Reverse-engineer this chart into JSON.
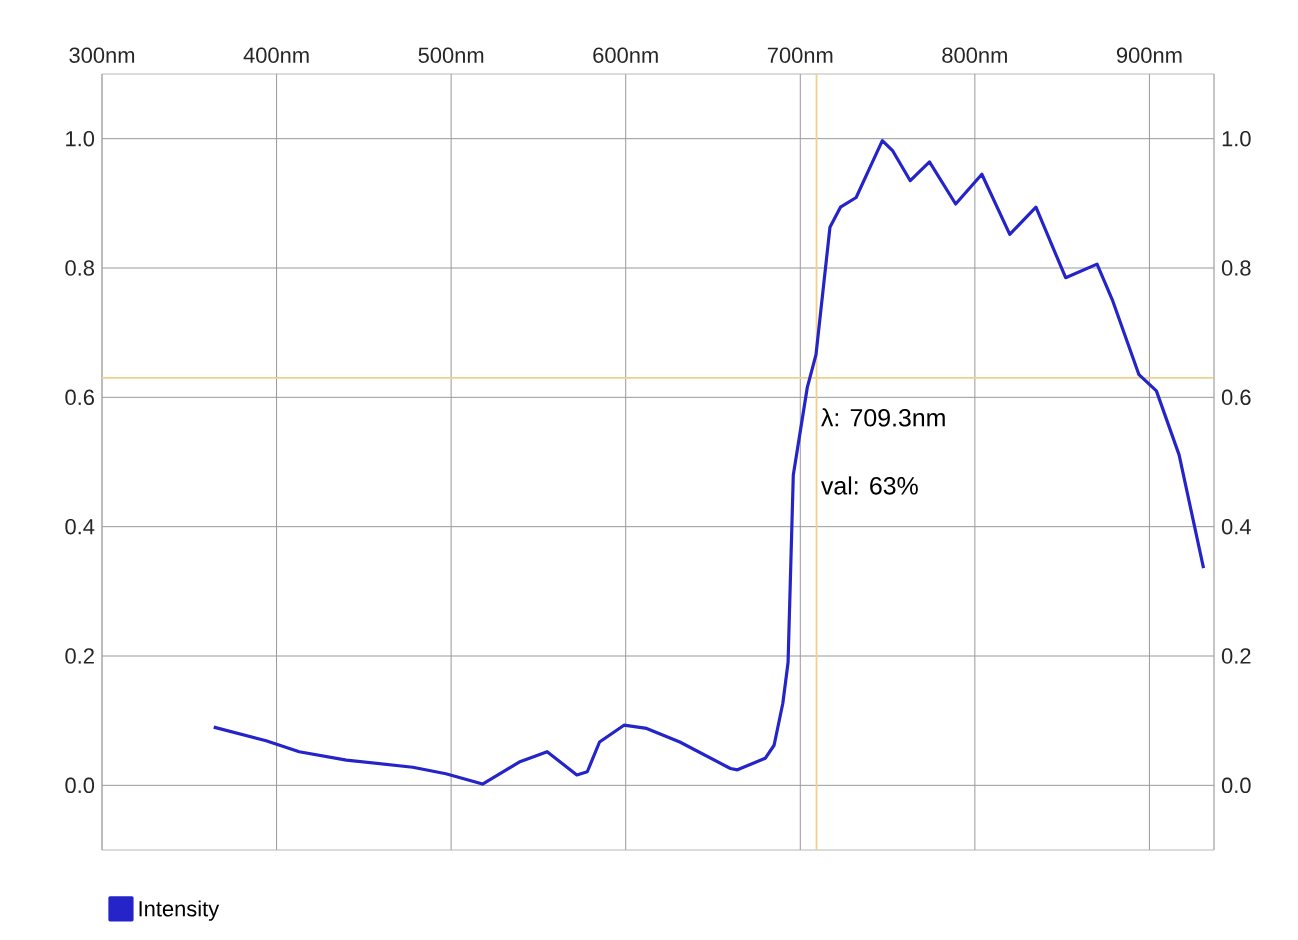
{
  "chart_data": {
    "type": "line",
    "x": [
      364,
      394,
      413,
      440,
      478,
      497,
      518,
      539,
      555,
      572,
      578,
      585,
      599,
      612,
      631,
      660,
      664,
      680,
      685,
      690,
      693,
      696,
      704,
      709,
      717,
      723,
      732,
      740,
      747,
      753,
      763,
      774,
      789,
      804,
      820,
      835,
      852,
      870,
      879,
      894,
      904,
      917,
      931
    ],
    "series": [
      {
        "name": "Intensity",
        "color": "#2424c8",
        "values": [
          0.09,
          0.069,
          0.052,
          0.039,
          0.028,
          0.018,
          0.002,
          0.036,
          0.052,
          0.016,
          0.021,
          0.067,
          0.093,
          0.088,
          0.067,
          0.026,
          0.024,
          0.042,
          0.062,
          0.127,
          0.19,
          0.48,
          0.615,
          0.666,
          0.863,
          0.894,
          0.909,
          0.956,
          0.997,
          0.981,
          0.935,
          0.964,
          0.899,
          0.945,
          0.852,
          0.894,
          0.785,
          0.806,
          0.749,
          0.635,
          0.61,
          0.511,
          0.336
        ]
      }
    ],
    "xlim": [
      300,
      937
    ],
    "xticks": [
      {
        "value": 300,
        "label": "300nm"
      },
      {
        "value": 400,
        "label": "400nm"
      },
      {
        "value": 500,
        "label": "500nm"
      },
      {
        "value": 600,
        "label": "600nm"
      },
      {
        "value": 700,
        "label": "700nm"
      },
      {
        "value": 800,
        "label": "800nm"
      },
      {
        "value": 900,
        "label": "900nm"
      }
    ],
    "ylim": [
      -0.1,
      1.1
    ],
    "yticks": [
      {
        "value": 0,
        "label": "0.0"
      },
      0.2,
      0.4,
      0.6,
      0.8,
      {
        "value": 1,
        "label": "1.0"
      }
    ],
    "y2lim": [
      -0.1,
      1.1
    ],
    "y2ticks": [
      {
        "value": 0,
        "label": "0.0"
      },
      0.2,
      0.4,
      0.6,
      0.8,
      {
        "value": 1,
        "label": "1.0"
      }
    ],
    "ref_lines": [
      {
        "axis": "x",
        "value": 709.3,
        "color": "#f2cf8c"
      },
      {
        "axis": "y",
        "value": 0.63,
        "color": "#f2cf8c"
      }
    ],
    "annotations": [
      "λ: 709.3nm",
      "val: 63%"
    ],
    "grid": true,
    "legend": "bottom left"
  }
}
